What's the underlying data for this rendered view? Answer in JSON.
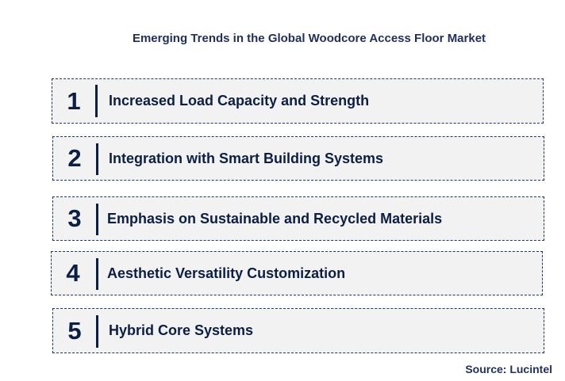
{
  "title": "Emerging Trends in the Global Woodcore Access Floor Market",
  "trends": [
    {
      "number": "1",
      "label": "Increased Load Capacity and Strength"
    },
    {
      "number": "2",
      "label": "Integration with Smart Building Systems"
    },
    {
      "number": "3",
      "label": "Emphasis on Sustainable and Recycled Materials"
    },
    {
      "number": "4",
      "label": "Aesthetic Versatility Customization"
    },
    {
      "number": "5",
      "label": "Hybrid Core Systems"
    }
  ],
  "source": "Source: Lucintel",
  "colors": {
    "text": "#0b1f44",
    "box_background": "#f2f2f2",
    "box_border": "#1f3864"
  }
}
